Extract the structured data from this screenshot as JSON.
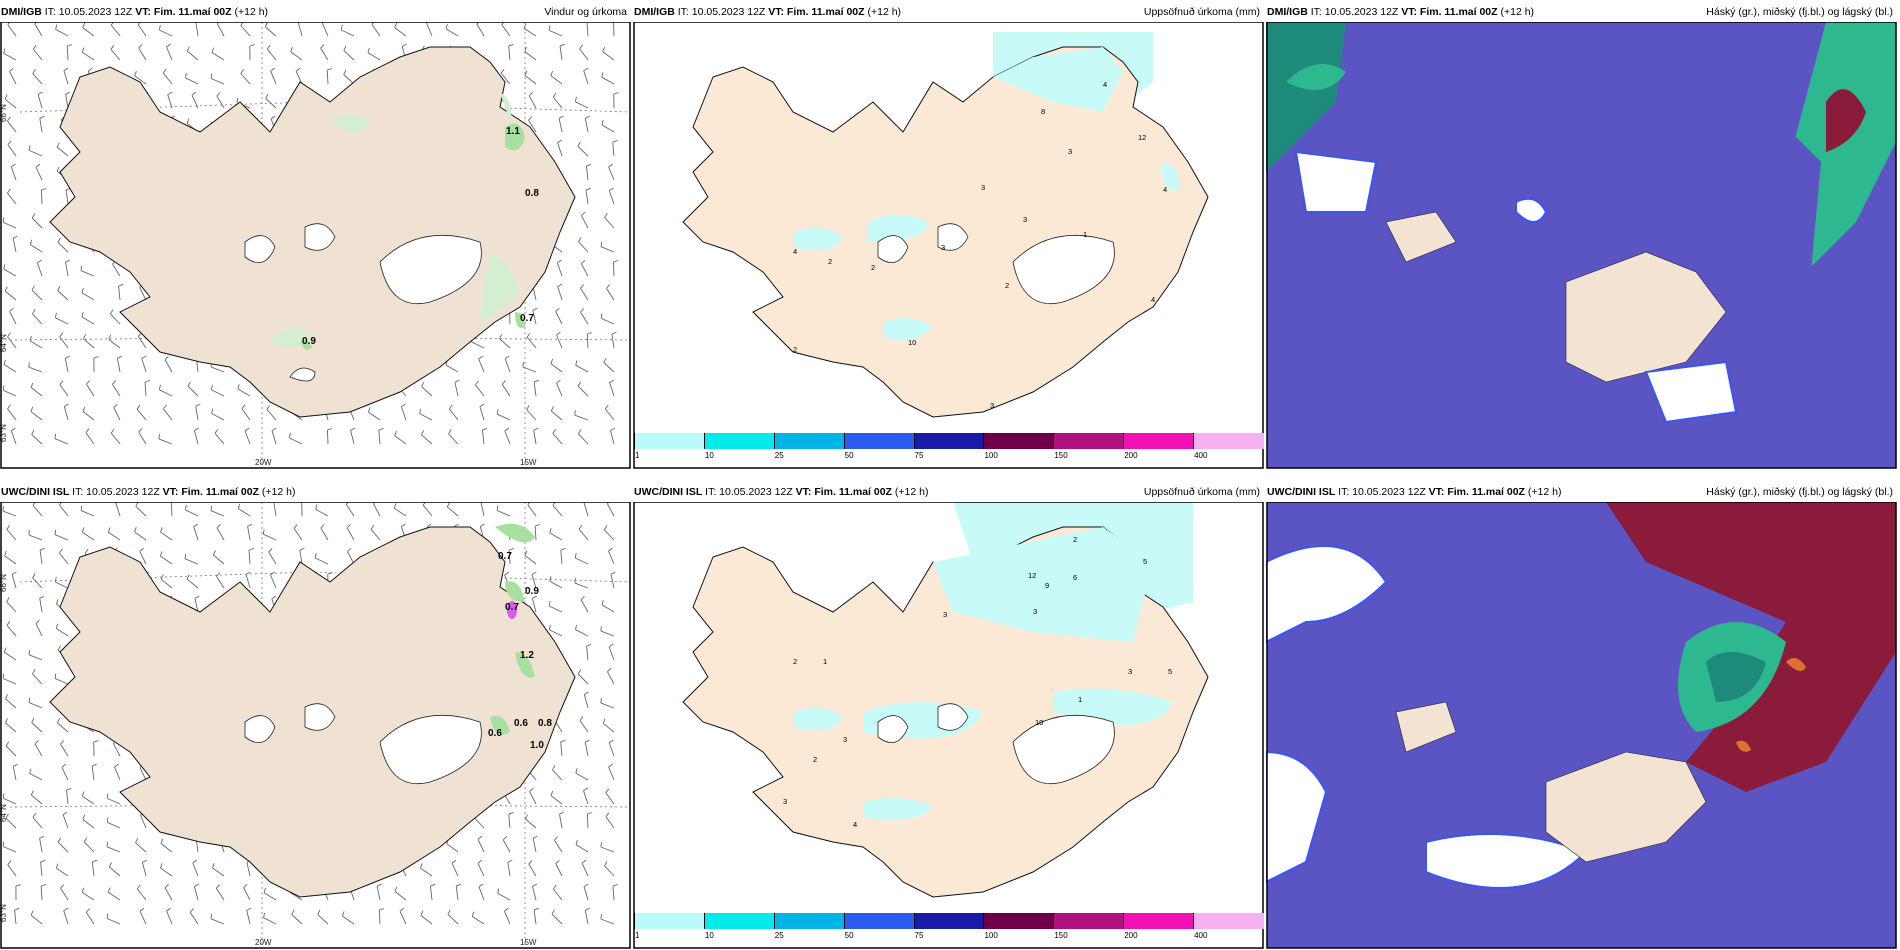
{
  "panels": {
    "p1": {
      "model": "DMI/IGB",
      "it": "IT: 10.05.2023 12Z",
      "vt": "VT: Fim. 11.maí 00Z",
      "lead": "(+12 h)",
      "right": "Vindur og úrkoma"
    },
    "p2": {
      "model": "DMI/IGB",
      "it": "IT: 10.05.2023 12Z",
      "vt": "VT: Fim. 11.maí 00Z",
      "lead": "(+12 h)",
      "right": "Uppsöfnuð úrkoma (mm)"
    },
    "p3": {
      "model": "DMI/IGB",
      "it": "IT: 10.05.2023 12Z",
      "vt": "VT: Fim. 11.maí 00Z",
      "lead": "(+12 h)",
      "right": "Háský (gr.), miðský (fj.bl.) og lágský (bl.)"
    },
    "p4": {
      "model": "UWC/DINI ISL",
      "it": "IT: 10.05.2023 12Z",
      "vt": "VT: Fim. 11.maí 00Z",
      "lead": "(+12 h)",
      "right": ""
    },
    "p5": {
      "model": "UWC/DINI ISL",
      "it": "IT: 10.05.2023 12Z",
      "vt": "VT: Fim. 11.maí 00Z",
      "lead": "(+12 h)",
      "right": "Uppsöfnuð úrkoma (mm)"
    },
    "p6": {
      "model": "UWC/DINI ISL",
      "it": "IT: 10.05.2023 12Z",
      "vt": "VT: Fim. 11.maí 00Z",
      "lead": "(+12 h)",
      "right": "Háský (gr.), miðský (fj.bl.) og lágský (bl.)"
    }
  },
  "axes": {
    "lat66": "66°N",
    "lat64": "64°N",
    "lat63": "63°N",
    "lon20": "20W",
    "lon15": "15W"
  },
  "precip_values_top": [
    "1.1",
    "0.8",
    "0.7",
    "0.9"
  ],
  "precip_values_bottom": [
    "0.7",
    "0.9",
    "0.7",
    "1.2",
    "0.6",
    "0.6",
    "0.8",
    "1.0"
  ],
  "accum_labels_top": [
    "4",
    "8",
    "12",
    "3",
    "3",
    "4",
    "3",
    "1",
    "4",
    "2",
    "2",
    "3",
    "2",
    "4",
    "10",
    "2",
    "3"
  ],
  "accum_labels_bottom": [
    "2",
    "5",
    "12",
    "9",
    "6",
    "3",
    "3",
    "1",
    "2",
    "3",
    "5",
    "1",
    "3",
    "2",
    "3",
    "4",
    "10"
  ],
  "colorbar": {
    "ticks": [
      "1",
      "10",
      "25",
      "50",
      "75",
      "100",
      "150",
      "200",
      "400"
    ],
    "colors": [
      "#b8fbf8",
      "#00ebeb",
      "#00b4e6",
      "#2a5cf0",
      "#1a1aa8",
      "#6e004a",
      "#b0107e",
      "#f010b4",
      "#f6b0f0"
    ]
  }
}
